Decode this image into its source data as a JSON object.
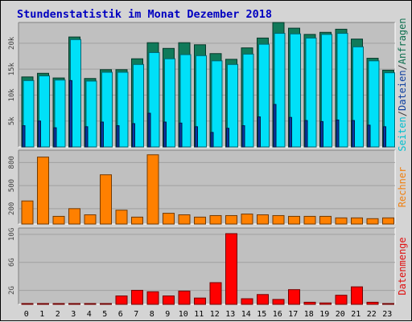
{
  "chart_data": [
    {
      "type": "bar",
      "title": "Stundenstatistik im Monat Dezember 2018",
      "panel": "requests",
      "xlabel": "",
      "ylabel_parts": [
        {
          "text": "Seiten",
          "color": "#00c0d0"
        },
        {
          "text": "/",
          "color": "#404040"
        },
        {
          "text": "Dateien",
          "color": "#1040a0"
        },
        {
          "text": "/",
          "color": "#404040"
        },
        {
          "text": "Anfragen",
          "color": "#107050"
        }
      ],
      "categories": [
        "0",
        "1",
        "2",
        "3",
        "4",
        "5",
        "6",
        "7",
        "8",
        "9",
        "10",
        "11",
        "12",
        "13",
        "14",
        "15",
        "16",
        "17",
        "18",
        "19",
        "20",
        "21",
        "22",
        "23"
      ],
      "ylim": [
        0,
        24000
      ],
      "yticks": [
        {
          "v": 5000,
          "label": "5k"
        },
        {
          "v": 10000,
          "label": "10k"
        },
        {
          "v": 15000,
          "label": "15k"
        },
        {
          "v": 20000,
          "label": "20k"
        }
      ],
      "series": [
        {
          "name": "Anfragen",
          "color": "#107a5a",
          "values": [
            13500,
            14200,
            13300,
            21200,
            13200,
            14900,
            14900,
            17000,
            20100,
            19000,
            20100,
            19700,
            18000,
            16900,
            19100,
            21000,
            24000,
            22900,
            21700,
            22100,
            22700,
            20800,
            17100,
            14800
          ]
        },
        {
          "name": "Dateien",
          "color": "#00e0f8",
          "values": [
            12800,
            13700,
            12900,
            20700,
            12700,
            14400,
            14400,
            15900,
            18200,
            17000,
            17800,
            17600,
            16600,
            15900,
            17900,
            19800,
            21900,
            21800,
            21000,
            21700,
            21900,
            19300,
            16600,
            14300
          ]
        },
        {
          "name": "Seiten",
          "color": "#0838a0",
          "values": [
            4100,
            5000,
            3700,
            12800,
            3900,
            4800,
            4100,
            4500,
            6500,
            4800,
            4600,
            3900,
            2800,
            3600,
            4100,
            5800,
            8200,
            5700,
            5100,
            4900,
            5200,
            5100,
            4200,
            3900
          ]
        }
      ]
    },
    {
      "type": "bar",
      "panel": "visits",
      "ylabel": "Rechner",
      "ylabel_color": "#f08010",
      "categories": [
        "0",
        "1",
        "2",
        "3",
        "4",
        "5",
        "6",
        "7",
        "8",
        "9",
        "10",
        "11",
        "12",
        "13",
        "14",
        "15",
        "16",
        "17",
        "18",
        "19",
        "20",
        "21",
        "22",
        "23"
      ],
      "ylim": [
        0,
        960
      ],
      "yticks": [
        {
          "v": 200,
          "label": "200"
        },
        {
          "v": 500,
          "label": "500"
        },
        {
          "v": 800,
          "label": "800"
        }
      ],
      "series": [
        {
          "name": "Rechner",
          "color": "#ff8000",
          "values": [
            300,
            870,
            100,
            200,
            120,
            640,
            180,
            90,
            900,
            140,
            120,
            90,
            110,
            110,
            130,
            120,
            110,
            100,
            100,
            100,
            80,
            80,
            70,
            80
          ]
        }
      ]
    },
    {
      "type": "bar",
      "panel": "volume",
      "ylabel": "Datenmenge",
      "ylabel_color": "#e01010",
      "categories": [
        "0",
        "1",
        "2",
        "3",
        "4",
        "5",
        "6",
        "7",
        "8",
        "9",
        "10",
        "11",
        "12",
        "13",
        "14",
        "15",
        "16",
        "17",
        "18",
        "19",
        "20",
        "21",
        "22",
        "23"
      ],
      "ylim": [
        0,
        10.9
      ],
      "yticks": [
        {
          "v": 2,
          "label": "2G"
        },
        {
          "v": 6,
          "label": "6G"
        },
        {
          "v": 10,
          "label": "10G"
        }
      ],
      "series": [
        {
          "name": "Datenmenge",
          "color": "#ff0000",
          "values": [
            0.1,
            0.1,
            0.1,
            0.1,
            0.1,
            0.1,
            1.2,
            2.0,
            1.8,
            1.2,
            1.9,
            0.9,
            3.1,
            10.1,
            0.8,
            1.4,
            0.7,
            2.1,
            0.3,
            0.2,
            1.3,
            2.5,
            0.3,
            0.1
          ]
        }
      ]
    }
  ]
}
